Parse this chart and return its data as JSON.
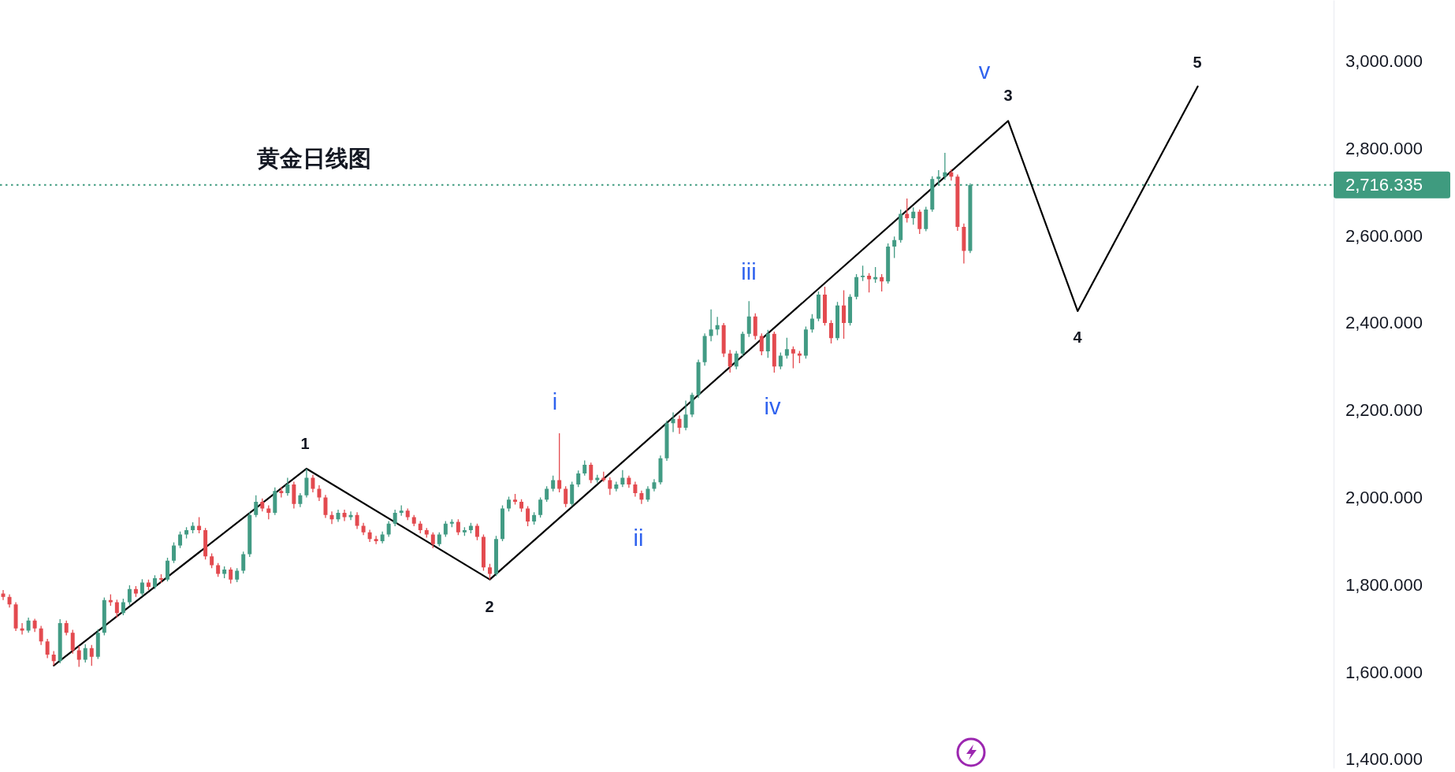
{
  "chart_data": {
    "type": "candlestick",
    "title": "黄金日线图",
    "categories": [
      null,
      null,
      null,
      null,
      null,
      null,
      null,
      null,
      null,
      null,
      null,
      null,
      null,
      null,
      null,
      null,
      null,
      null,
      null,
      null,
      null,
      null,
      null,
      null,
      null,
      null,
      null,
      null,
      null,
      null,
      null,
      null,
      null,
      null,
      null,
      null,
      null,
      null,
      null,
      null,
      null,
      null,
      null,
      null,
      null,
      null,
      null,
      null,
      null,
      null,
      null,
      null,
      null,
      null,
      null,
      null,
      null,
      null,
      null,
      null,
      null,
      null,
      null,
      null,
      null,
      null,
      null,
      null,
      null,
      null,
      null,
      null,
      null,
      null,
      null,
      null,
      null,
      null,
      null,
      null,
      null,
      null,
      null,
      null,
      null,
      null,
      null,
      null,
      null,
      null,
      null,
      null,
      null,
      null,
      null,
      null,
      null,
      null,
      null,
      null,
      null,
      null,
      null,
      null,
      null,
      null,
      null,
      null,
      null,
      null,
      null,
      null,
      null,
      null,
      null,
      null,
      null,
      null,
      null,
      null,
      null,
      null,
      null,
      null,
      null,
      null,
      null,
      null,
      null,
      null,
      null,
      null,
      null,
      null,
      null,
      null,
      null,
      null,
      null,
      null,
      null,
      null,
      null,
      null,
      null,
      null,
      null,
      null,
      null,
      null,
      null,
      null,
      null,
      null,
      null,
      null,
      null,
      null,
      null,
      null,
      null,
      null,
      null,
      null,
      null,
      null,
      null,
      null,
      null,
      null,
      null,
      null,
      null,
      null,
      null,
      null,
      null,
      null,
      null,
      null,
      null,
      null,
      null,
      null,
      null,
      null,
      null,
      null,
      null,
      null,
      null,
      null,
      null,
      null,
      null,
      null,
      null,
      null,
      null,
      null,
      null,
      null,
      null,
      null,
      null,
      null,
      null,
      null,
      null,
      null,
      null
    ],
    "ohlc": [
      [
        1780,
        1788,
        1765,
        1772
      ],
      [
        1772,
        1778,
        1748,
        1755
      ],
      [
        1755,
        1760,
        1694,
        1700
      ],
      [
        1700,
        1712,
        1686,
        1695
      ],
      [
        1695,
        1725,
        1690,
        1718
      ],
      [
        1718,
        1722,
        1692,
        1700
      ],
      [
        1700,
        1706,
        1662,
        1670
      ],
      [
        1670,
        1676,
        1632,
        1640
      ],
      [
        1640,
        1648,
        1615,
        1625
      ],
      [
        1625,
        1721,
        1620,
        1712
      ],
      [
        1712,
        1718,
        1684,
        1690
      ],
      [
        1690,
        1697,
        1642,
        1650
      ],
      [
        1650,
        1660,
        1612,
        1628
      ],
      [
        1628,
        1664,
        1622,
        1655
      ],
      [
        1655,
        1662,
        1614,
        1635
      ],
      [
        1635,
        1698,
        1630,
        1690
      ],
      [
        1690,
        1771,
        1684,
        1765
      ],
      [
        1765,
        1778,
        1752,
        1760
      ],
      [
        1760,
        1766,
        1725,
        1735
      ],
      [
        1735,
        1768,
        1730,
        1760
      ],
      [
        1760,
        1799,
        1754,
        1790
      ],
      [
        1790,
        1797,
        1772,
        1780
      ],
      [
        1780,
        1813,
        1774,
        1805
      ],
      [
        1805,
        1812,
        1788,
        1795
      ],
      [
        1795,
        1822,
        1790,
        1815
      ],
      [
        1815,
        1824,
        1804,
        1812
      ],
      [
        1812,
        1862,
        1808,
        1855
      ],
      [
        1855,
        1897,
        1850,
        1890
      ],
      [
        1890,
        1922,
        1884,
        1915
      ],
      [
        1915,
        1932,
        1906,
        1925
      ],
      [
        1925,
        1943,
        1918,
        1935
      ],
      [
        1935,
        1955,
        1918,
        1925
      ],
      [
        1925,
        1930,
        1858,
        1865
      ],
      [
        1865,
        1872,
        1838,
        1845
      ],
      [
        1845,
        1850,
        1818,
        1825
      ],
      [
        1825,
        1842,
        1815,
        1835
      ],
      [
        1835,
        1840,
        1803,
        1812
      ],
      [
        1812,
        1838,
        1806,
        1832
      ],
      [
        1832,
        1876,
        1826,
        1870
      ],
      [
        1870,
        1966,
        1864,
        1960
      ],
      [
        1960,
        2005,
        1955,
        1990
      ],
      [
        1990,
        1998,
        1968,
        1975
      ],
      [
        1975,
        1982,
        1950,
        1965
      ],
      [
        1965,
        2023,
        1960,
        2015
      ],
      [
        2015,
        2024,
        2000,
        2010
      ],
      [
        2010,
        2045,
        2004,
        2030
      ],
      [
        2030,
        2036,
        1975,
        1985
      ],
      [
        1985,
        2010,
        1978,
        2005
      ],
      [
        2005,
        2066,
        2000,
        2045
      ],
      [
        2045,
        2052,
        2012,
        2020
      ],
      [
        2020,
        2028,
        1992,
        2000
      ],
      [
        2000,
        2006,
        1953,
        1960
      ],
      [
        1960,
        1968,
        1939,
        1950
      ],
      [
        1950,
        1972,
        1944,
        1965
      ],
      [
        1965,
        1972,
        1946,
        1955
      ],
      [
        1955,
        1968,
        1948,
        1960
      ],
      [
        1960,
        1966,
        1928,
        1935
      ],
      [
        1935,
        1942,
        1914,
        1920
      ],
      [
        1920,
        1926,
        1898,
        1905
      ],
      [
        1905,
        1912,
        1893,
        1900
      ],
      [
        1900,
        1922,
        1895,
        1915
      ],
      [
        1915,
        1946,
        1910,
        1940
      ],
      [
        1940,
        1972,
        1934,
        1965
      ],
      [
        1965,
        1982,
        1958,
        1970
      ],
      [
        1970,
        1975,
        1948,
        1955
      ],
      [
        1955,
        1960,
        1934,
        1940
      ],
      [
        1940,
        1946,
        1918,
        1925
      ],
      [
        1925,
        1930,
        1908,
        1915
      ],
      [
        1915,
        1920,
        1884,
        1893
      ],
      [
        1893,
        1920,
        1888,
        1915
      ],
      [
        1915,
        1946,
        1910,
        1940
      ],
      [
        1940,
        1950,
        1932,
        1944
      ],
      [
        1944,
        1950,
        1914,
        1920
      ],
      [
        1920,
        1932,
        1912,
        1925
      ],
      [
        1925,
        1942,
        1918,
        1935
      ],
      [
        1935,
        1940,
        1902,
        1910
      ],
      [
        1910,
        1915,
        1832,
        1840
      ],
      [
        1840,
        1848,
        1812,
        1825
      ],
      [
        1825,
        1912,
        1820,
        1905
      ],
      [
        1905,
        1982,
        1900,
        1975
      ],
      [
        1975,
        2002,
        1968,
        1995
      ],
      [
        1995,
        2008,
        1984,
        1990
      ],
      [
        1990,
        1996,
        1967,
        1975
      ],
      [
        1975,
        1980,
        1934,
        1945
      ],
      [
        1945,
        1966,
        1938,
        1960
      ],
      [
        1960,
        2000,
        1954,
        1995
      ],
      [
        1995,
        2026,
        1990,
        2020
      ],
      [
        2020,
        2050,
        2014,
        2040
      ],
      [
        2040,
        2147,
        2012,
        2020
      ],
      [
        2020,
        2026,
        1978,
        1985
      ],
      [
        1985,
        2036,
        1980,
        2030
      ],
      [
        2030,
        2062,
        2024,
        2055
      ],
      [
        2055,
        2085,
        2050,
        2075
      ],
      [
        2075,
        2080,
        2033,
        2040
      ],
      [
        2040,
        2052,
        2034,
        2045
      ],
      [
        2045,
        2059,
        2036,
        2040
      ],
      [
        2040,
        2046,
        2006,
        2020
      ],
      [
        2020,
        2036,
        2014,
        2030
      ],
      [
        2030,
        2063,
        2024,
        2045
      ],
      [
        2045,
        2050,
        2022,
        2030
      ],
      [
        2030,
        2036,
        2002,
        2010
      ],
      [
        2010,
        2016,
        1985,
        1995
      ],
      [
        1995,
        2026,
        1990,
        2020
      ],
      [
        2020,
        2042,
        2014,
        2035
      ],
      [
        2035,
        2096,
        2030,
        2090
      ],
      [
        2090,
        2176,
        2084,
        2170
      ],
      [
        2170,
        2195,
        2150,
        2180
      ],
      [
        2180,
        2188,
        2146,
        2160
      ],
      [
        2160,
        2222,
        2154,
        2190
      ],
      [
        2190,
        2240,
        2184,
        2235
      ],
      [
        2235,
        2316,
        2228,
        2310
      ],
      [
        2310,
        2376,
        2302,
        2370
      ],
      [
        2370,
        2431,
        2358,
        2385
      ],
      [
        2385,
        2414,
        2372,
        2395
      ],
      [
        2395,
        2400,
        2322,
        2330
      ],
      [
        2330,
        2338,
        2286,
        2300
      ],
      [
        2300,
        2336,
        2294,
        2330
      ],
      [
        2330,
        2380,
        2324,
        2375
      ],
      [
        2375,
        2450,
        2368,
        2415
      ],
      [
        2415,
        2422,
        2362,
        2370
      ],
      [
        2370,
        2376,
        2326,
        2335
      ],
      [
        2335,
        2384,
        2320,
        2375
      ],
      [
        2375,
        2380,
        2286,
        2300
      ],
      [
        2300,
        2332,
        2294,
        2325
      ],
      [
        2325,
        2366,
        2318,
        2340
      ],
      [
        2340,
        2346,
        2296,
        2330
      ],
      [
        2330,
        2336,
        2308,
        2325
      ],
      [
        2325,
        2392,
        2318,
        2385
      ],
      [
        2385,
        2420,
        2378,
        2410
      ],
      [
        2410,
        2472,
        2404,
        2465
      ],
      [
        2465,
        2483,
        2394,
        2400
      ],
      [
        2400,
        2406,
        2353,
        2365
      ],
      [
        2365,
        2448,
        2360,
        2440
      ],
      [
        2440,
        2475,
        2364,
        2400
      ],
      [
        2400,
        2466,
        2394,
        2460
      ],
      [
        2460,
        2512,
        2454,
        2505
      ],
      [
        2505,
        2531,
        2496,
        2508
      ],
      [
        2508,
        2514,
        2470,
        2500
      ],
      [
        2500,
        2528,
        2492,
        2505
      ],
      [
        2505,
        2512,
        2472,
        2495
      ],
      [
        2495,
        2582,
        2490,
        2575
      ],
      [
        2575,
        2598,
        2549,
        2590
      ],
      [
        2590,
        2660,
        2584,
        2650
      ],
      [
        2650,
        2685,
        2630,
        2640
      ],
      [
        2640,
        2665,
        2625,
        2655
      ],
      [
        2655,
        2660,
        2604,
        2615
      ],
      [
        2615,
        2666,
        2610,
        2660
      ],
      [
        2660,
        2736,
        2655,
        2730
      ],
      [
        2730,
        2750,
        2716,
        2735
      ],
      [
        2735,
        2790,
        2728,
        2745
      ],
      [
        2745,
        2752,
        2726,
        2735
      ],
      [
        2735,
        2740,
        2611,
        2620
      ],
      [
        2620,
        2628,
        2536,
        2565
      ],
      [
        2565,
        2720,
        2560,
        2716
      ],
      null,
      null,
      null,
      null,
      null,
      null,
      null,
      null,
      null,
      null,
      null,
      null,
      null,
      null,
      null,
      null,
      null,
      null,
      null,
      null,
      null,
      null,
      null,
      null,
      null,
      null,
      null,
      null,
      null,
      null,
      null,
      null,
      null,
      null,
      null,
      null,
      null,
      null,
      null,
      null,
      null,
      null,
      null,
      null,
      null,
      null,
      null,
      null,
      null,
      null,
      null,
      null,
      null,
      null,
      null,
      null,
      null
    ],
    "colors": [
      "#e34a4f",
      "#e34a4f",
      "#e34a4f",
      "#e34a4f",
      "#429b84",
      "#e34a4f",
      "#e34a4f",
      "#e34a4f",
      "#e34a4f",
      "#429b84",
      "#e34a4f",
      "#e34a4f",
      "#e34a4f",
      "#429b84",
      "#e34a4f",
      "#429b84",
      "#429b84",
      "#e34a4f",
      "#e34a4f",
      "#429b84",
      "#429b84",
      "#e34a4f",
      "#429b84",
      "#e34a4f",
      "#429b84",
      "#e34a4f",
      "#429b84",
      "#429b84",
      "#429b84",
      "#429b84",
      "#429b84",
      "#e34a4f",
      "#e34a4f",
      "#e34a4f",
      "#e34a4f",
      "#429b84",
      "#e34a4f",
      "#429b84",
      "#429b84",
      "#429b84",
      "#429b84",
      "#e34a4f",
      "#e34a4f",
      "#429b84",
      "#e34a4f",
      "#429b84",
      "#e34a4f",
      "#429b84",
      "#429b84",
      "#e34a4f",
      "#e34a4f",
      "#e34a4f",
      "#e34a4f",
      "#429b84",
      "#e34a4f",
      "#429b84",
      "#e34a4f",
      "#e34a4f",
      "#e34a4f",
      "#e34a4f",
      "#429b84",
      "#429b84",
      "#429b84",
      "#429b84",
      "#e34a4f",
      "#e34a4f",
      "#e34a4f",
      "#e34a4f",
      "#e34a4f",
      "#429b84",
      "#429b84",
      "#429b84",
      "#e34a4f",
      "#429b84",
      "#429b84",
      "#e34a4f",
      "#e34a4f",
      "#e34a4f",
      "#429b84",
      "#429b84",
      "#429b84",
      "#e34a4f",
      "#e34a4f",
      "#e34a4f",
      "#429b84",
      "#429b84",
      "#429b84",
      "#429b84",
      "#e34a4f",
      "#e34a4f",
      "#429b84",
      "#429b84",
      "#429b84",
      "#e34a4f",
      "#429b84",
      "#e34a4f",
      "#e34a4f",
      "#429b84",
      "#429b84",
      "#e34a4f",
      "#e34a4f",
      "#e34a4f",
      "#429b84",
      "#429b84",
      "#429b84",
      "#429b84",
      "#429b84",
      "#e34a4f",
      "#429b84",
      "#429b84",
      "#429b84",
      "#429b84",
      "#429b84",
      "#429b84",
      "#e34a4f",
      "#e34a4f",
      "#429b84",
      "#429b84",
      "#429b84",
      "#e34a4f",
      "#e34a4f",
      "#429b84",
      "#e34a4f",
      "#429b84",
      "#429b84",
      "#e34a4f",
      "#e34a4f",
      "#429b84",
      "#429b84",
      "#429b84",
      "#e34a4f",
      "#e34a4f",
      "#429b84",
      "#e34a4f",
      "#429b84",
      "#429b84",
      "#429b84",
      "#e34a4f",
      "#429b84",
      "#e34a4f",
      "#429b84",
      "#429b84",
      "#429b84",
      "#e34a4f",
      "#429b84",
      "#e34a4f",
      "#429b84",
      "#429b84",
      "#429b84",
      "#429b84",
      "#e34a4f",
      "#e34a4f",
      "#e34a4f",
      "#429b84",
      null,
      null,
      null,
      null,
      null,
      null,
      null,
      null,
      null,
      null,
      null,
      null,
      null,
      null,
      null,
      null,
      null,
      null,
      null,
      null,
      null,
      null,
      null,
      null,
      null,
      null,
      null,
      null,
      null,
      null,
      null,
      null,
      null,
      null,
      null,
      null,
      null,
      null,
      null,
      null,
      null,
      null,
      null,
      null,
      null,
      null,
      null,
      null,
      null,
      null,
      null,
      null,
      null,
      null,
      null,
      null,
      null
    ],
    "series": [
      {
        "type": "line",
        "color": "#000000",
        "values": [
          null,
          null,
          null,
          null,
          null,
          null,
          null,
          null,
          1615,
          null,
          null,
          null,
          null,
          null,
          null,
          null,
          null,
          null,
          null,
          null,
          null,
          null,
          null,
          null,
          null,
          null,
          null,
          null,
          null,
          null,
          null,
          null,
          null,
          null,
          null,
          null,
          null,
          null,
          null,
          null,
          null,
          null,
          null,
          null,
          null,
          null,
          null,
          null,
          2066,
          null,
          null,
          null,
          null,
          null,
          null,
          null,
          null,
          null,
          null,
          null,
          null,
          null,
          null,
          null,
          null,
          null,
          null,
          null,
          null,
          null,
          null,
          null,
          null,
          null,
          null,
          null,
          null,
          1812,
          null,
          null,
          null,
          null,
          null,
          null,
          null,
          null,
          null,
          null,
          null,
          null,
          null,
          null,
          null,
          null,
          null,
          null,
          null,
          null,
          null,
          null,
          null,
          null,
          null,
          null,
          null,
          null,
          null,
          null,
          null,
          null,
          null,
          null,
          null,
          null,
          null,
          null,
          null,
          null,
          null,
          null,
          null,
          null,
          null,
          null,
          null,
          null,
          null,
          null,
          null,
          null,
          null,
          null,
          null,
          null,
          null,
          null,
          null,
          null,
          null,
          null,
          null,
          null,
          null,
          null,
          null,
          null,
          null,
          null,
          null,
          null,
          null,
          null,
          null,
          null,
          null,
          null,
          null,
          null,
          null,
          2863,
          null,
          null,
          null,
          null,
          null,
          null,
          null,
          null,
          null,
          null,
          2427,
          null,
          null,
          null,
          null,
          null,
          null,
          null,
          null,
          null,
          null,
          null,
          null,
          null,
          null,
          null,
          null,
          null,
          null,
          2942,
          null,
          null,
          null,
          null,
          null,
          null,
          null,
          null,
          null,
          null,
          null,
          null,
          null,
          null,
          null,
          null,
          null,
          null,
          null,
          null,
          null
        ]
      }
    ],
    "ylim": [
      1380,
      3140
    ],
    "yticks": [
      {
        "value": 1400,
        "label": "1,400.000"
      },
      {
        "value": 1600,
        "label": "1,600.000"
      },
      {
        "value": 1800,
        "label": "1,800.000"
      },
      {
        "value": 2000,
        "label": "2,000.000"
      },
      {
        "value": 2200,
        "label": "2,200.000"
      },
      {
        "value": 2400,
        "label": "2,400.000"
      },
      {
        "value": 2600,
        "label": "2,600.000"
      },
      {
        "value": 2800,
        "label": "2,800.000"
      },
      {
        "value": 3000,
        "label": "3,000.000"
      }
    ],
    "tick_labels": "y",
    "ref_lines": [
      {
        "axis": "y",
        "value": 2716.335,
        "label": "2,716.335",
        "color": "#3f9b7f",
        "line_style": "dotted"
      }
    ],
    "annotations": [
      "1",
      "2",
      "3",
      "4",
      "5",
      "i",
      "ii",
      "iii",
      "iv",
      "v"
    ]
  }
}
